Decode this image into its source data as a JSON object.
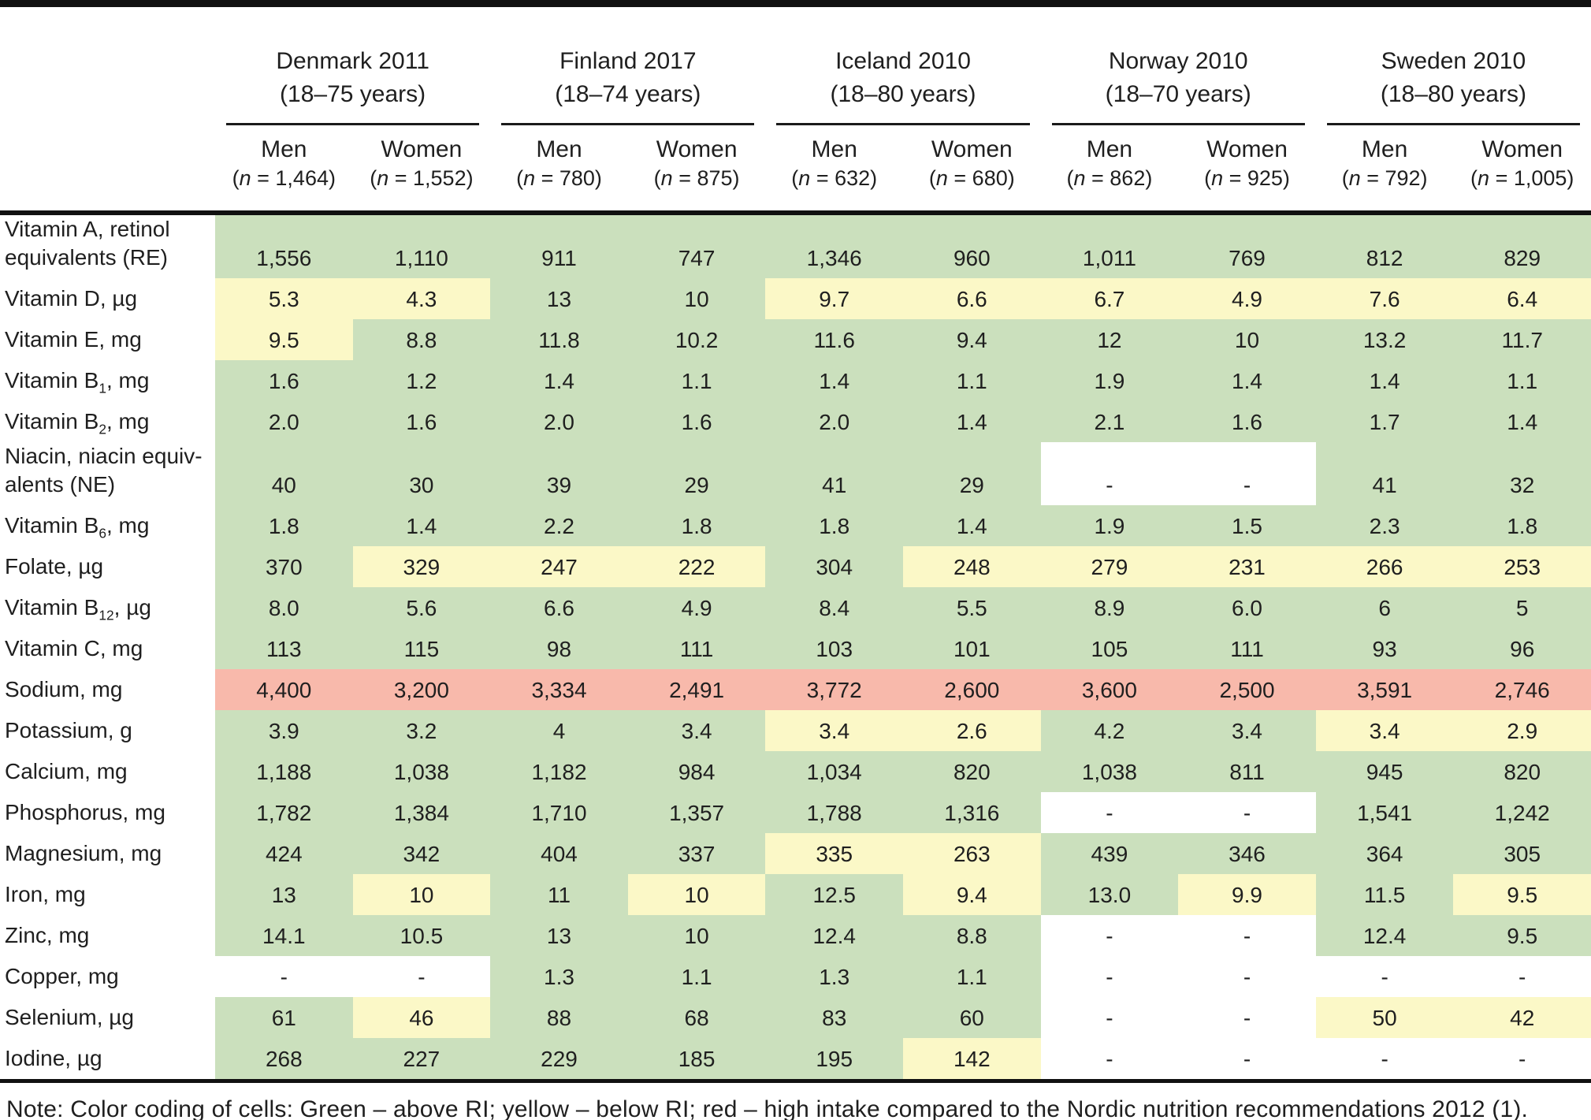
{
  "legend_colors": {
    "green": "#cbe0bd",
    "yellow": "#fbf8c7",
    "red": "#f8b9ab",
    "white": "#ffffff"
  },
  "header": {
    "n_open": "(",
    "n_symbol": "n",
    "n_eq": " = ",
    "n_close": ")",
    "countries": [
      {
        "name": "Denmark 2011",
        "age_range": "(18–75 years)",
        "columns": [
          {
            "sex": "Men",
            "n": "1,464"
          },
          {
            "sex": "Women",
            "n": "1,552"
          }
        ]
      },
      {
        "name": "Finland 2017",
        "age_range": "(18–74 years)",
        "columns": [
          {
            "sex": "Men",
            "n": "780"
          },
          {
            "sex": "Women",
            "n": "875"
          }
        ]
      },
      {
        "name": "Iceland 2010",
        "age_range": "(18–80 years)",
        "columns": [
          {
            "sex": "Men",
            "n": "632"
          },
          {
            "sex": "Women",
            "n": "680"
          }
        ]
      },
      {
        "name": "Norway 2010",
        "age_range": "(18–70 years)",
        "columns": [
          {
            "sex": "Men",
            "n": "862"
          },
          {
            "sex": "Women",
            "n": "925"
          }
        ]
      },
      {
        "name": "Sweden 2010",
        "age_range": "(18–80 years)",
        "columns": [
          {
            "sex": "Men",
            "n": "792"
          },
          {
            "sex": "Women",
            "n": "1,005"
          }
        ]
      }
    ]
  },
  "rows": [
    {
      "label": "Vitamin A, retinol equivalents (RE)",
      "values": [
        "1,556",
        "1,110",
        "911",
        "747",
        "1,346",
        "960",
        "1,011",
        "769",
        "812",
        "829"
      ],
      "colors": [
        "g",
        "g",
        "g",
        "g",
        "g",
        "g",
        "g",
        "g",
        "g",
        "g"
      ]
    },
    {
      "label": "Vitamin D, µg",
      "values": [
        "5.3",
        "4.3",
        "13",
        "10",
        "9.7",
        "6.6",
        "6.7",
        "4.9",
        "7.6",
        "6.4"
      ],
      "colors": [
        "y",
        "y",
        "g",
        "g",
        "y",
        "y",
        "y",
        "y",
        "y",
        "y"
      ]
    },
    {
      "label": "Vitamin E, mg",
      "values": [
        "9.5",
        "8.8",
        "11.8",
        "10.2",
        "11.6",
        "9.4",
        "12",
        "10",
        "13.2",
        "11.7"
      ],
      "colors": [
        "y",
        "g",
        "g",
        "g",
        "g",
        "g",
        "g",
        "g",
        "g",
        "g"
      ]
    },
    {
      "label": "Vitamin B~1~, mg",
      "values": [
        "1.6",
        "1.2",
        "1.4",
        "1.1",
        "1.4",
        "1.1",
        "1.9",
        "1.4",
        "1.4",
        "1.1"
      ],
      "colors": [
        "g",
        "g",
        "g",
        "g",
        "g",
        "g",
        "g",
        "g",
        "g",
        "g"
      ]
    },
    {
      "label": "Vitamin B~2~, mg",
      "values": [
        "2.0",
        "1.6",
        "2.0",
        "1.6",
        "2.0",
        "1.4",
        "2.1",
        "1.6",
        "1.7",
        "1.4"
      ],
      "colors": [
        "g",
        "g",
        "g",
        "g",
        "g",
        "g",
        "g",
        "g",
        "g",
        "g"
      ]
    },
    {
      "label": "Niacin, niacin equiv-alents (NE)",
      "values": [
        "40",
        "30",
        "39",
        "29",
        "41",
        "29",
        "-",
        "-",
        "41",
        "32"
      ],
      "colors": [
        "g",
        "g",
        "g",
        "g",
        "g",
        "g",
        "w",
        "w",
        "g",
        "g"
      ]
    },
    {
      "label": "Vitamin B~6~, mg",
      "values": [
        "1.8",
        "1.4",
        "2.2",
        "1.8",
        "1.8",
        "1.4",
        "1.9",
        "1.5",
        "2.3",
        "1.8"
      ],
      "colors": [
        "g",
        "g",
        "g",
        "g",
        "g",
        "g",
        "g",
        "g",
        "g",
        "g"
      ]
    },
    {
      "label": "Folate, µg",
      "values": [
        "370",
        "329",
        "247",
        "222",
        "304",
        "248",
        "279",
        "231",
        "266",
        "253"
      ],
      "colors": [
        "g",
        "y",
        "y",
        "y",
        "g",
        "y",
        "y",
        "y",
        "y",
        "y"
      ]
    },
    {
      "label": "Vitamin B~12~, µg",
      "values": [
        "8.0",
        "5.6",
        "6.6",
        "4.9",
        "8.4",
        "5.5",
        "8.9",
        "6.0",
        "6",
        "5"
      ],
      "colors": [
        "g",
        "g",
        "g",
        "g",
        "g",
        "g",
        "g",
        "g",
        "g",
        "g"
      ]
    },
    {
      "label": "Vitamin C, mg",
      "values": [
        "113",
        "115",
        "98",
        "111",
        "103",
        "101",
        "105",
        "111",
        "93",
        "96"
      ],
      "colors": [
        "g",
        "g",
        "g",
        "g",
        "g",
        "g",
        "g",
        "g",
        "g",
        "g"
      ]
    },
    {
      "label": "Sodium, mg",
      "values": [
        "4,400",
        "3,200",
        "3,334",
        "2,491",
        "3,772",
        "2,600",
        "3,600",
        "2,500",
        "3,591",
        "2,746"
      ],
      "colors": [
        "r",
        "r",
        "r",
        "r",
        "r",
        "r",
        "r",
        "r",
        "r",
        "r"
      ]
    },
    {
      "label": "Potassium, g",
      "values": [
        "3.9",
        "3.2",
        "4",
        "3.4",
        "3.4",
        "2.6",
        "4.2",
        "3.4",
        "3.4",
        "2.9"
      ],
      "colors": [
        "g",
        "g",
        "g",
        "g",
        "y",
        "y",
        "g",
        "g",
        "y",
        "y"
      ]
    },
    {
      "label": "Calcium, mg",
      "values": [
        "1,188",
        "1,038",
        "1,182",
        "984",
        "1,034",
        "820",
        "1,038",
        "811",
        "945",
        "820"
      ],
      "colors": [
        "g",
        "g",
        "g",
        "g",
        "g",
        "g",
        "g",
        "g",
        "g",
        "g"
      ]
    },
    {
      "label": "Phosphorus, mg",
      "values": [
        "1,782",
        "1,384",
        "1,710",
        "1,357",
        "1,788",
        "1,316",
        "-",
        "-",
        "1,541",
        "1,242"
      ],
      "colors": [
        "g",
        "g",
        "g",
        "g",
        "g",
        "g",
        "w",
        "w",
        "g",
        "g"
      ]
    },
    {
      "label": "Magnesium, mg",
      "values": [
        "424",
        "342",
        "404",
        "337",
        "335",
        "263",
        "439",
        "346",
        "364",
        "305"
      ],
      "colors": [
        "g",
        "g",
        "g",
        "g",
        "y",
        "y",
        "g",
        "g",
        "g",
        "g"
      ]
    },
    {
      "label": "Iron, mg",
      "values": [
        "13",
        "10",
        "11",
        "10",
        "12.5",
        "9.4",
        "13.0",
        "9.9",
        "11.5",
        "9.5"
      ],
      "colors": [
        "g",
        "y",
        "g",
        "y",
        "g",
        "y",
        "g",
        "y",
        "g",
        "y"
      ]
    },
    {
      "label": "Zinc, mg",
      "values": [
        "14.1",
        "10.5",
        "13",
        "10",
        "12.4",
        "8.8",
        "-",
        "-",
        "12.4",
        "9.5"
      ],
      "colors": [
        "g",
        "g",
        "g",
        "g",
        "g",
        "g",
        "w",
        "w",
        "g",
        "g"
      ]
    },
    {
      "label": "Copper, mg",
      "values": [
        "-",
        "-",
        "1.3",
        "1.1",
        "1.3",
        "1.1",
        "-",
        "-",
        "-",
        "-"
      ],
      "colors": [
        "w",
        "w",
        "g",
        "g",
        "g",
        "g",
        "w",
        "w",
        "w",
        "w"
      ]
    },
    {
      "label": "Selenium, µg",
      "values": [
        "61",
        "46",
        "88",
        "68",
        "83",
        "60",
        "-",
        "-",
        "50",
        "42"
      ],
      "colors": [
        "g",
        "y",
        "g",
        "g",
        "g",
        "g",
        "w",
        "w",
        "y",
        "y"
      ]
    },
    {
      "label": "Iodine, µg",
      "values": [
        "268",
        "227",
        "229",
        "185",
        "195",
        "142",
        "-",
        "-",
        "-",
        "-"
      ],
      "colors": [
        "g",
        "g",
        "g",
        "g",
        "g",
        "y",
        "w",
        "w",
        "w",
        "w"
      ]
    }
  ],
  "note": "Note: Color coding of cells: Green – above RI; yellow – below RI; red – high intake compared to the Nordic nutrition recommendations 2012 (1)."
}
